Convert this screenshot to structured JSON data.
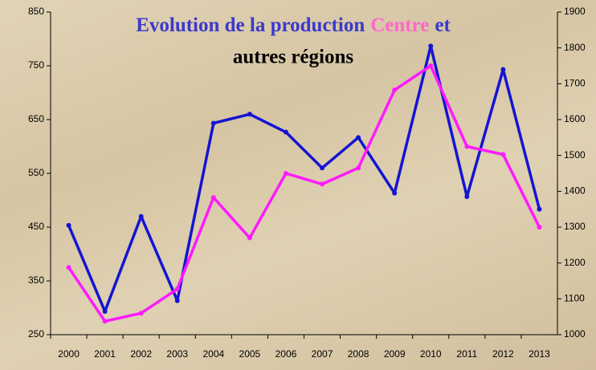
{
  "chart_data": {
    "type": "line",
    "title_start": "Evolution de la production",
    "title_join": "et",
    "categories": [
      "2000",
      "2001",
      "2002",
      "2003",
      "2004",
      "2005",
      "2006",
      "2007",
      "2008",
      "2009",
      "2010",
      "2011",
      "2012",
      "2013"
    ],
    "series": [
      {
        "name": "autres régions",
        "color": "#1414d2",
        "axis": "y2",
        "values": [
          1305,
          1065,
          1330,
          1095,
          1590,
          1615,
          1565,
          1465,
          1550,
          1395,
          1805,
          1385,
          1740,
          1350
        ]
      },
      {
        "name": "Centre",
        "color": "#ff1aff",
        "values": [
          375,
          275,
          290,
          335,
          505,
          430,
          550,
          530,
          560,
          705,
          750,
          600,
          585,
          450
        ]
      }
    ],
    "ylim": [
      250,
      850
    ],
    "yticks": [
      250,
      350,
      450,
      550,
      650,
      750,
      850
    ],
    "y2lim": [
      1000,
      1900
    ],
    "y2ticks": [
      1000,
      1100,
      1200,
      1300,
      1400,
      1500,
      1600,
      1700,
      1800,
      1900
    ],
    "title_color": "#3a3acc",
    "title_accent_color": "#ff66cc"
  }
}
